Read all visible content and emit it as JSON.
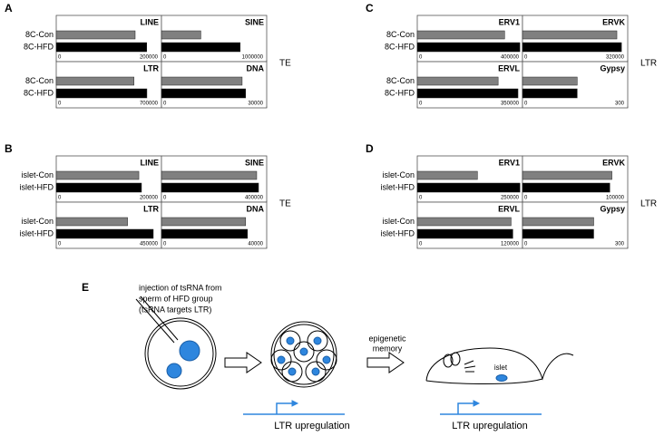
{
  "chart_data": [
    {
      "type": "bar",
      "label": "A",
      "side_label": "TE",
      "colors": [
        "#808080",
        "#000000"
      ],
      "rows": [
        {
          "categories": [
            "8C-Con",
            "8C-HFD"
          ],
          "subplots": [
            {
              "title": "LINE",
              "values": [
                150000,
                172000
              ],
              "xlim": [
                0,
                200000
              ],
              "xticks": [
                0,
                200000
              ]
            },
            {
              "title": "SINE",
              "values": [
                374000,
                748000
              ],
              "xlim": [
                0,
                1000000
              ],
              "xticks": [
                0,
                1000000
              ]
            }
          ]
        },
        {
          "categories": [
            "8C-Con",
            "8C-HFD"
          ],
          "subplots": [
            {
              "title": "LTR",
              "values": [
                517000,
                603000
              ],
              "xlim": [
                0,
                700000
              ],
              "xticks": [
                0,
                700000
              ]
            },
            {
              "title": "DNA",
              "values": [
                23000,
                24000
              ],
              "xlim": [
                0,
                30000
              ],
              "xticks": [
                0,
                30000
              ]
            }
          ]
        }
      ]
    },
    {
      "type": "bar",
      "label": "B",
      "side_label": "TE",
      "colors": [
        "#808080",
        "#000000"
      ],
      "rows": [
        {
          "categories": [
            "islet-Con",
            "islet-HFD"
          ],
          "subplots": [
            {
              "title": "LINE",
              "values": [
                157000,
                162000
              ],
              "xlim": [
                0,
                200000
              ],
              "xticks": [
                0,
                200000
              ]
            },
            {
              "title": "SINE",
              "values": [
                362000,
                369000
              ],
              "xlim": [
                0,
                400000
              ],
              "xticks": [
                0,
                400000
              ]
            }
          ]
        },
        {
          "categories": [
            "islet-Con",
            "islet-HFD"
          ],
          "subplots": [
            {
              "title": "LTR",
              "values": [
                305000,
                415000
              ],
              "xlim": [
                0,
                450000
              ],
              "xticks": [
                0,
                450000
              ]
            },
            {
              "title": "DNA",
              "values": [
                32000,
                32700
              ],
              "xlim": [
                0,
                40000
              ],
              "xticks": [
                0,
                40000
              ]
            }
          ]
        }
      ]
    },
    {
      "type": "bar",
      "label": "C",
      "side_label": "LTR",
      "colors": [
        "#808080",
        "#000000"
      ],
      "rows": [
        {
          "categories": [
            "8C-Con",
            "8C-HFD"
          ],
          "subplots": [
            {
              "title": "ERV1",
              "values": [
                332000,
                390000
              ],
              "xlim": [
                0,
                400000
              ],
              "xticks": [
                0,
                400000
              ]
            },
            {
              "title": "ERVK",
              "values": [
                287000,
                301000
              ],
              "xlim": [
                0,
                320000
              ],
              "xticks": [
                0,
                320000
              ]
            }
          ]
        },
        {
          "categories": [
            "8C-Con",
            "8C-HFD"
          ],
          "subplots": [
            {
              "title": "ERVL",
              "values": [
                269000,
                335000
              ],
              "xlim": [
                0,
                350000
              ],
              "xticks": [
                0,
                350000
              ]
            },
            {
              "title": "Gypsy",
              "values": [
                156,
                156
              ],
              "xlim": [
                0,
                300
              ],
              "xticks": [
                0,
                300
              ]
            }
          ]
        }
      ]
    },
    {
      "type": "bar",
      "label": "D",
      "side_label": "LTR",
      "colors": [
        "#808080",
        "#000000"
      ],
      "rows": [
        {
          "categories": [
            "islet-Con",
            "islet-HFD"
          ],
          "subplots": [
            {
              "title": "ERV1",
              "values": [
                143000,
                244000
              ],
              "xlim": [
                0,
                250000
              ],
              "xticks": [
                0,
                250000
              ]
            },
            {
              "title": "ERVK",
              "values": [
                85000,
                83000
              ],
              "xlim": [
                0,
                100000
              ],
              "xticks": [
                0,
                100000
              ]
            }
          ]
        },
        {
          "categories": [
            "islet-Con",
            "islet-HFD"
          ],
          "subplots": [
            {
              "title": "ERVL",
              "values": [
                107000,
                109000
              ],
              "xlim": [
                0,
                120000
              ],
              "xticks": [
                0,
                120000
              ]
            },
            {
              "title": "Gypsy",
              "values": [
                203,
                203
              ],
              "xlim": [
                0,
                300
              ],
              "xticks": [
                0,
                300
              ]
            }
          ]
        }
      ]
    }
  ],
  "diagram": {
    "label": "E",
    "injection_note": [
      "injection of tsRNA from",
      "sperm of HFD group",
      "(tsRNA targets LTR)"
    ],
    "memory_note": [
      "epigenetic",
      "memory"
    ],
    "islet_label": "islet",
    "outcomes": [
      "LTR upregulation",
      "LTR upregulation"
    ]
  }
}
